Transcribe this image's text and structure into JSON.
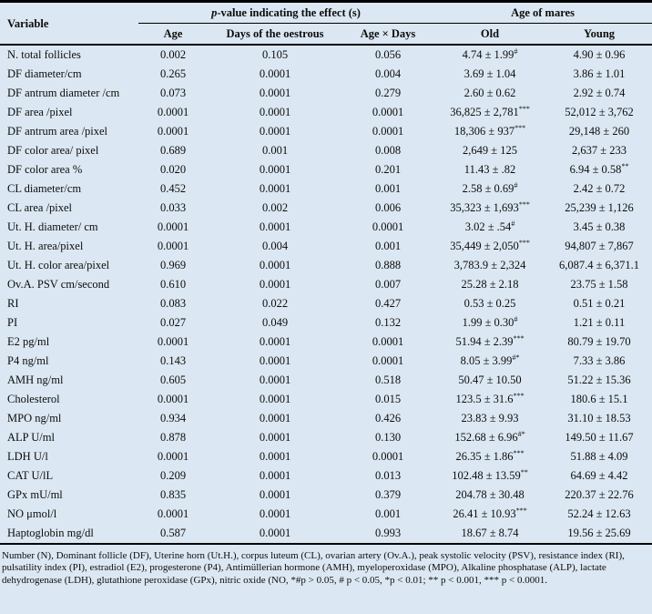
{
  "table": {
    "header": {
      "variable": "Variable",
      "pvalue_group_italic": "p",
      "pvalue_group_rest": "-value indicating the effect (s)",
      "age_group": "Age of mares",
      "columns": [
        "Age",
        "Days of the oestrous",
        "Age × Days",
        "Old",
        "Young"
      ]
    },
    "rows": [
      {
        "variable": "N. total follicles",
        "age": "0.002",
        "days": "0.105",
        "age_days": "0.056",
        "old": "4.74 ± 1.99",
        "old_sup": "#",
        "young": "4.90 ± 0.96",
        "young_sup": ""
      },
      {
        "variable": "DF diameter/cm",
        "age": "0.265",
        "days": "0.0001",
        "age_days": "0.004",
        "old": "3.69 ± 1.04",
        "old_sup": "",
        "young": "3.86 ± 1.01",
        "young_sup": ""
      },
      {
        "variable": "DF antrum diameter /cm",
        "age": "0.073",
        "days": "0.0001",
        "age_days": "0.279",
        "old": "2.60 ± 0.62",
        "old_sup": "",
        "young": "2.92 ± 0.74",
        "young_sup": ""
      },
      {
        "variable": "DF area /pixel",
        "age": "0.0001",
        "days": "0.0001",
        "age_days": "0.0001",
        "old": "36,825 ± 2,781",
        "old_sup": "***",
        "young": "52,012 ± 3,762",
        "young_sup": ""
      },
      {
        "variable": "DF antrum area /pixel",
        "age": "0.0001",
        "days": "0.0001",
        "age_days": "0.0001",
        "old": "18,306 ± 937",
        "old_sup": "***",
        "young": "29,148 ± 260",
        "young_sup": ""
      },
      {
        "variable": "DF color area/ pixel",
        "age": "0.689",
        "days": "0.001",
        "age_days": "0.008",
        "old": "2,649 ± 125",
        "old_sup": "",
        "young": "2,637 ± 233",
        "young_sup": ""
      },
      {
        "variable": "DF color area %",
        "age": "0.020",
        "days": "0.0001",
        "age_days": "0.201",
        "old": "11.43 ± .82",
        "old_sup": "",
        "young": "6.94 ± 0.58",
        "young_sup": "**"
      },
      {
        "variable": "CL diameter/cm",
        "age": "0.452",
        "days": "0.0001",
        "age_days": "0.001",
        "old": "2.58 ± 0.69",
        "old_sup": "#",
        "young": "2.42 ± 0.72",
        "young_sup": ""
      },
      {
        "variable": "CL area /pixel",
        "age": "0.033",
        "days": "0.002",
        "age_days": "0.006",
        "old": "35,323 ± 1,693",
        "old_sup": "***",
        "young": "25,239 ± 1,126",
        "young_sup": ""
      },
      {
        "variable": "Ut. H. diameter/ cm",
        "age": "0.0001",
        "days": "0.0001",
        "age_days": "0.0001",
        "old": "3.02 ± .54",
        "old_sup": "#",
        "young": "3.45 ± 0.38",
        "young_sup": ""
      },
      {
        "variable": "Ut. H. area/pixel",
        "age": "0.0001",
        "days": "0.004",
        "age_days": "0.001",
        "old": "35,449 ± 2,050",
        "old_sup": "***",
        "young": "94,807 ± 7,867",
        "young_sup": ""
      },
      {
        "variable": "Ut. H. color area/pixel",
        "age": "0.969",
        "days": "0.0001",
        "age_days": "0.888",
        "old": "3,783.9 ± 2,324",
        "old_sup": "",
        "young": "6,087.4 ± 6,371.1",
        "young_sup": ""
      },
      {
        "variable": "Ov.A. PSV cm/second",
        "age": "0.610",
        "days": "0.0001",
        "age_days": "0.007",
        "old": "25.28 ± 2.18",
        "old_sup": "",
        "young": "23.75 ± 1.58",
        "young_sup": ""
      },
      {
        "variable": "RI",
        "age": "0.083",
        "days": "0.022",
        "age_days": "0.427",
        "old": "0.53 ± 0.25",
        "old_sup": "",
        "young": "0.51 ± 0.21",
        "young_sup": ""
      },
      {
        "variable": "PI",
        "age": "0.027",
        "days": "0.049",
        "age_days": "0.132",
        "old": "1.99 ± 0.30",
        "old_sup": "#",
        "young": "1.21 ± 0.11",
        "young_sup": ""
      },
      {
        "variable": "E2 pg/ml",
        "age": "0.0001",
        "days": "0.0001",
        "age_days": "0.0001",
        "old": "51.94 ± 2.39",
        "old_sup": "***",
        "young": "80.79 ± 19.70",
        "young_sup": ""
      },
      {
        "variable": "P4 ng/ml",
        "age": "0.143",
        "days": "0.0001",
        "age_days": "0.0001",
        "old": "8.05 ± 3.99",
        "old_sup": "#*",
        "young": "7.33 ± 3.86",
        "young_sup": ""
      },
      {
        "variable": "AMH ng/ml",
        "age": "0.605",
        "days": "0.0001",
        "age_days": "0.518",
        "old": "50.47 ± 10.50",
        "old_sup": "",
        "young": "51.22 ± 15.36",
        "young_sup": ""
      },
      {
        "variable": "Cholesterol",
        "age": "0.0001",
        "days": "0.0001",
        "age_days": "0.015",
        "old": "123.5 ± 31.6",
        "old_sup": "***",
        "young": "180.6 ± 15.1",
        "young_sup": ""
      },
      {
        "variable": "MPO ng/ml",
        "age": "0.934",
        "days": "0.0001",
        "age_days": "0.426",
        "old": "23.83 ± 9.93",
        "old_sup": "",
        "young": "31.10 ± 18.53",
        "young_sup": ""
      },
      {
        "variable": "ALP U/ml",
        "age": "0.878",
        "days": "0.0001",
        "age_days": "0.130",
        "old": "152.68 ± 6.96",
        "old_sup": "#*",
        "young": "149.50 ± 11.67",
        "young_sup": ""
      },
      {
        "variable": "LDH U/l",
        "age": "0.0001",
        "days": "0.0001",
        "age_days": "0.0001",
        "old": "26.35 ± 1.86",
        "old_sup": "***",
        "young": "51.88 ± 4.09",
        "young_sup": ""
      },
      {
        "variable": "CAT U/lL",
        "age": "0.209",
        "days": "0.0001",
        "age_days": "0.013",
        "old": "102.48 ± 13.59",
        "old_sup": "**",
        "young": "64.69 ± 4.42",
        "young_sup": ""
      },
      {
        "variable": "GPx mU/ml",
        "age": "0.835",
        "days": "0.0001",
        "age_days": "0.379",
        "old": "204.78 ± 30.48",
        "old_sup": "",
        "young": "220.37 ± 22.76",
        "young_sup": ""
      },
      {
        "variable": "NO μmol/l",
        "age": "0.0001",
        "days": "0.0001",
        "age_days": "0.001",
        "old": "26.41 ± 10.93",
        "old_sup": "***",
        "young": "52.24 ± 12.63",
        "young_sup": ""
      },
      {
        "variable": "Haptoglobin mg/dl",
        "age": "0.587",
        "days": "0.0001",
        "age_days": "0.993",
        "old": "18.67 ± 8.74",
        "old_sup": "",
        "young": "19.56 ± 25.69",
        "young_sup": ""
      }
    ],
    "footnote": "Number (N), Dominant follicle (DF), Uterine horn (Ut.H.), corpus luteum (CL), ovarian artery (Ov.A.), peak systolic velocity (PSV), resistance index (RI), pulsatility index (PI), estradiol (E2), progesterone (P4), Antimüllerian hormone (AMH), myeloperoxidase (MPO), Alkaline phosphatase (ALP), lactate dehydrogenase (LDH), glutathione peroxidase (GPx), nitric oxide (NO, *#p > 0.05, # p < 0.05, *p < 0.01; ** p < 0.001, *** p < 0.0001."
  },
  "colors": {
    "background": "#dbe7f2",
    "text": "#0d0d0d",
    "rule": "#000000"
  }
}
